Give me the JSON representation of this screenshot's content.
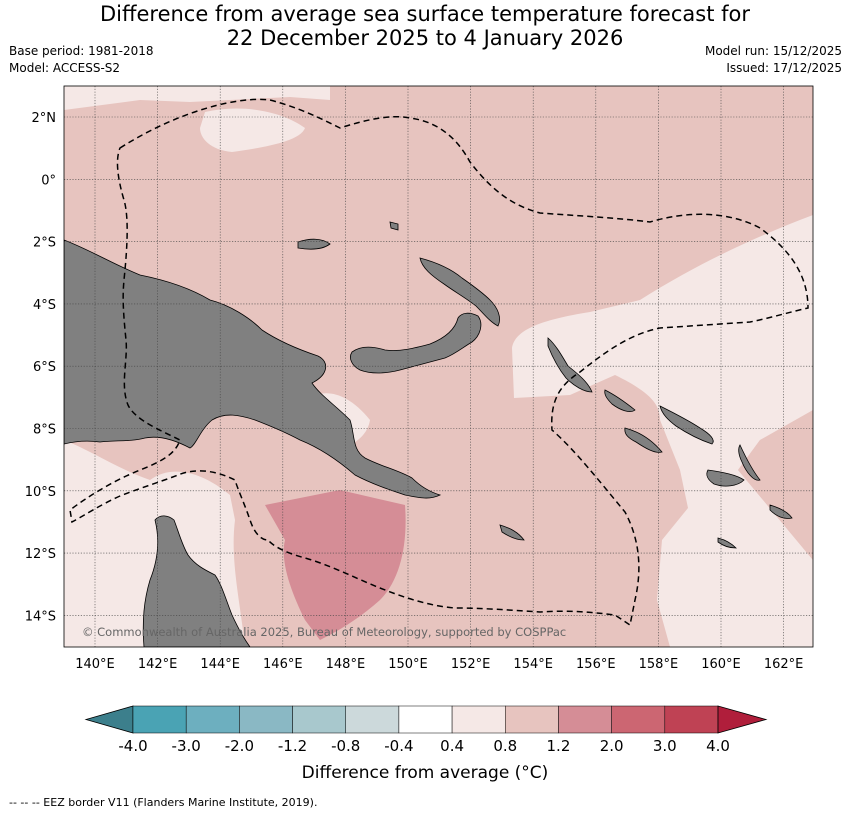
{
  "title_line1": "Difference from average sea surface temperature forecast for",
  "title_line2": "22 December 2025 to 4 January 2026",
  "base_period": "Base period: 1981-2018",
  "model": "Model: ACCESS-S2",
  "model_run": "Model run: 15/12/2025",
  "issued": "Issued: 17/12/2025",
  "copyright": "© Commonwealth of Australia 2025, Bureau of Meteorology, supported by COSPPac",
  "lat_labels": [
    "2°N",
    "0°",
    "2°S",
    "4°S",
    "6°S",
    "8°S",
    "10°S",
    "12°S",
    "14°S"
  ],
  "lon_labels": [
    "140°E",
    "142°E",
    "144°E",
    "146°E",
    "148°E",
    "150°E",
    "152°E",
    "154°E",
    "156°E",
    "158°E",
    "160°E",
    "162°E"
  ],
  "colorbar": {
    "ticks": [
      "-4.0",
      "-3.0",
      "-2.0",
      "-1.2",
      "-0.8",
      "-0.4",
      "0.4",
      "0.8",
      "1.2",
      "2.0",
      "3.0",
      "4.0"
    ],
    "colors": [
      "#3c7f8c",
      "#4aa3b4",
      "#6dafbf",
      "#8ab8c4",
      "#a8c8cd",
      "#ccd9db",
      "#ffffff",
      "#f5e8e6",
      "#e7c4bf",
      "#d58d96",
      "#cc6672",
      "#bf4254",
      "#b01e3b"
    ],
    "caption": "Difference from average (°C)"
  },
  "footnote": "-- -- -- EEZ border V11 (Flanders Marine Institute, 2019).",
  "palette": {
    "land": "#808080",
    "anomaly_0_4_to_0_8": "#f5e8e6",
    "anomaly_0_8_to_1_2": "#e7c4bf",
    "anomaly_1_2_to_2_0": "#d58d96"
  }
}
